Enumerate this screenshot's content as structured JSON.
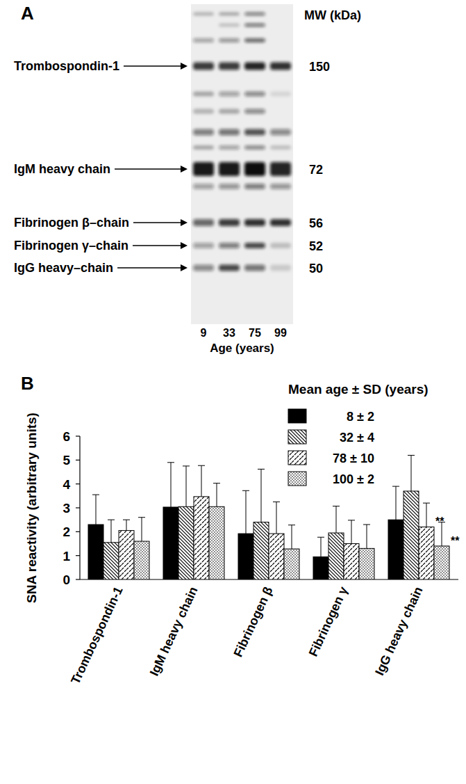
{
  "chart_data": [
    {
      "type": "blot",
      "panel_label": "A",
      "mw_title": "MW (kDa)",
      "bands": [
        {
          "label": "Trombospondin-1",
          "mw": 150
        },
        {
          "label": "IgM heavy chain",
          "mw": 72
        },
        {
          "label": "Fibrinogen β–chain",
          "mw": 56
        },
        {
          "label": "Fibrinogen γ–chain",
          "mw": 52
        },
        {
          "label": "IgG heavy–chain",
          "mw": 50
        }
      ],
      "lanes": [
        9,
        33,
        75,
        99
      ],
      "x_label": "Age (years)"
    },
    {
      "type": "bar",
      "panel_label": "B",
      "y_label": "SNA reactivity (arbitrary units)",
      "categories": [
        "Trombospondin-1",
        "IgM heavy chain",
        "Fibrinogen β",
        "Fibrinogen γ",
        "IgG heavy chain"
      ],
      "series": [
        {
          "name": "8 ± 2",
          "color": "#000000",
          "values": [
            2.3,
            3.03,
            1.92,
            0.95,
            2.5
          ],
          "errors": [
            1.25,
            1.87,
            1.8,
            0.82,
            1.4
          ]
        },
        {
          "name": "32 ± 4",
          "color": "#000000",
          "values": [
            1.55,
            3.05,
            2.4,
            1.95,
            3.7
          ],
          "errors": [
            0.95,
            1.7,
            2.22,
            1.12,
            1.5
          ]
        },
        {
          "name": "78 ± 10",
          "color": "#000000",
          "values": [
            2.05,
            3.47,
            1.92,
            1.5,
            2.2
          ],
          "errors": [
            0.45,
            1.3,
            1.33,
            0.98,
            1.0
          ]
        },
        {
          "name": "100 ± 2",
          "color": "#000000",
          "values": [
            1.6,
            3.05,
            1.28,
            1.3,
            1.4
          ],
          "errors": [
            1.0,
            0.98,
            1.0,
            1.0,
            1.0
          ]
        }
      ],
      "ylim": [
        0,
        6
      ],
      "yticks": [
        0,
        1,
        2,
        3,
        4,
        5,
        6
      ],
      "legend": "upper right",
      "legend_title": "Mean age ± SD (years)",
      "annotations": [
        {
          "text": "**",
          "series": 2,
          "category": 4
        },
        {
          "text": "**",
          "series": 3,
          "category": 4
        }
      ]
    }
  ]
}
